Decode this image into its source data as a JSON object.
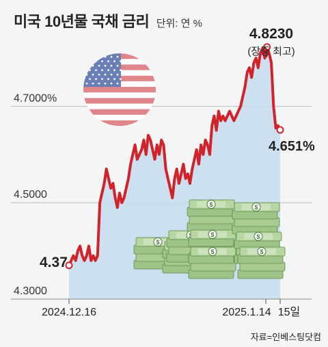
{
  "chart_data": {
    "type": "line",
    "title": "미국 10년물 국채 금리",
    "unit_label": "단위: 연 %",
    "source": "자료=인베스팅닷컴",
    "yticks": [
      "4.7000%",
      "4.5000",
      "4.3000"
    ],
    "ytick_values": [
      4.7,
      4.5,
      4.3
    ],
    "ylim": [
      4.3,
      4.895
    ],
    "xticks": [
      "2024.12.16",
      "2025.1.14",
      "15일"
    ],
    "series": [
      {
        "values": [
          4.37,
          4.38,
          4.39,
          4.38,
          4.4,
          4.41,
          4.39,
          4.38,
          4.39,
          4.41,
          4.38,
          4.39,
          4.38,
          4.39,
          4.5,
          4.52,
          4.54,
          4.57,
          4.55,
          4.53,
          4.54,
          4.51,
          4.49,
          4.52,
          4.5,
          4.51,
          4.53,
          4.55,
          4.58,
          4.6,
          4.62,
          4.59,
          4.6,
          4.61,
          4.63,
          4.6,
          4.64,
          4.63,
          4.61,
          4.59,
          4.62,
          4.6,
          4.63,
          4.62,
          4.57,
          4.55,
          4.53,
          4.51,
          4.55,
          4.57,
          4.54,
          4.56,
          4.58,
          4.55,
          4.56,
          4.54,
          4.57,
          4.59,
          4.61,
          4.58,
          4.62,
          4.6,
          4.63,
          4.62,
          4.6,
          4.66,
          4.68,
          4.65,
          4.69,
          4.67,
          4.68,
          4.67,
          4.68,
          4.69,
          4.68,
          4.67,
          4.68,
          4.69,
          4.7,
          4.72,
          4.74,
          4.77,
          4.78,
          4.76,
          4.79,
          4.8,
          4.78,
          4.81,
          4.82,
          4.8,
          4.823,
          4.81,
          4.79,
          4.7,
          4.655,
          4.66,
          4.651
        ]
      }
    ],
    "annotations": {
      "start_value": "4.37",
      "peak_value": "4.8230",
      "peak_note": "(장중 최고)",
      "end_value": "4.651%"
    },
    "grid": true,
    "colors": {
      "line": "#d2232a",
      "area": "#c4dcef",
      "grid": "#b9bec3",
      "background": "#f4f5f5"
    },
    "illustrations": [
      "us-flag-icon",
      "money-stacks-icon"
    ]
  }
}
